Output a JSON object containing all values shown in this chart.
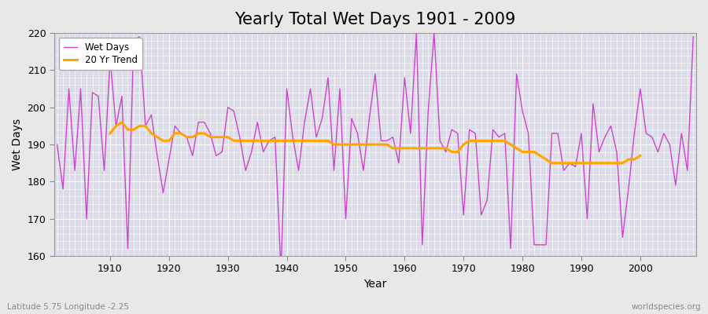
{
  "title": "Yearly Total Wet Days 1901 - 2009",
  "xlabel": "Year",
  "ylabel": "Wet Days",
  "subtitle": "Latitude 5.75 Longitude -2.25",
  "watermark": "worldspecies.org",
  "years": [
    1901,
    1902,
    1903,
    1904,
    1905,
    1906,
    1907,
    1908,
    1909,
    1910,
    1911,
    1912,
    1913,
    1914,
    1915,
    1916,
    1917,
    1918,
    1919,
    1920,
    1921,
    1922,
    1923,
    1924,
    1925,
    1926,
    1927,
    1928,
    1929,
    1930,
    1931,
    1932,
    1933,
    1934,
    1935,
    1936,
    1937,
    1938,
    1939,
    1940,
    1941,
    1942,
    1943,
    1944,
    1945,
    1946,
    1947,
    1948,
    1949,
    1950,
    1951,
    1952,
    1953,
    1954,
    1955,
    1956,
    1957,
    1958,
    1959,
    1960,
    1961,
    1962,
    1963,
    1964,
    1965,
    1966,
    1967,
    1968,
    1969,
    1970,
    1971,
    1972,
    1973,
    1974,
    1975,
    1976,
    1977,
    1978,
    1979,
    1980,
    1981,
    1982,
    1983,
    1984,
    1985,
    1986,
    1987,
    1988,
    1989,
    1990,
    1991,
    1992,
    1993,
    1994,
    1995,
    1996,
    1997,
    1998,
    1999,
    2000,
    2001,
    2002,
    2003,
    2004,
    2005,
    2006,
    2007,
    2008,
    2009
  ],
  "wet_days": [
    190,
    178,
    205,
    183,
    205,
    170,
    204,
    203,
    183,
    213,
    195,
    203,
    162,
    218,
    219,
    195,
    198,
    187,
    177,
    186,
    195,
    193,
    192,
    187,
    196,
    196,
    193,
    187,
    188,
    200,
    199,
    192,
    183,
    188,
    196,
    188,
    191,
    192,
    156,
    205,
    192,
    183,
    196,
    205,
    192,
    197,
    208,
    183,
    205,
    170,
    197,
    193,
    183,
    197,
    209,
    191,
    191,
    192,
    185,
    208,
    193,
    220,
    163,
    199,
    220,
    191,
    188,
    194,
    193,
    171,
    194,
    193,
    171,
    175,
    194,
    192,
    193,
    162,
    209,
    199,
    193,
    163,
    163,
    163,
    193,
    193,
    183,
    185,
    184,
    193,
    170,
    201,
    188,
    192,
    195,
    188,
    165,
    178,
    193,
    205,
    193,
    192,
    188,
    193,
    190,
    179,
    193,
    183,
    219
  ],
  "trend_years": [
    1910,
    1911,
    1912,
    1913,
    1914,
    1915,
    1916,
    1917,
    1918,
    1919,
    1920,
    1921,
    1922,
    1923,
    1924,
    1925,
    1926,
    1927,
    1928,
    1929,
    1930,
    1931,
    1932,
    1933,
    1934,
    1935,
    1936,
    1937,
    1938,
    1939,
    1940,
    1941,
    1942,
    1943,
    1944,
    1945,
    1946,
    1947,
    1948,
    1949,
    1950,
    1951,
    1952,
    1953,
    1954,
    1955,
    1956,
    1957,
    1958,
    1959,
    1960,
    1961,
    1962,
    1963,
    1964,
    1965,
    1966,
    1967,
    1968,
    1969,
    1970,
    1971,
    1972,
    1973,
    1974,
    1975,
    1976,
    1977,
    1978,
    1979,
    1980,
    1981,
    1982,
    1983,
    1984,
    1985,
    1986,
    1987,
    1988,
    1989,
    1990,
    1991,
    1992,
    1993,
    1994,
    1995,
    1996,
    1997,
    1998,
    1999,
    2000
  ],
  "trend_values": [
    193,
    195,
    196,
    194,
    194,
    195,
    195,
    193,
    192,
    191,
    191,
    193,
    193,
    192,
    192,
    193,
    193,
    192,
    192,
    192,
    192,
    191,
    191,
    191,
    191,
    191,
    191,
    191,
    191,
    191,
    191,
    191,
    191,
    191,
    191,
    191,
    191,
    191,
    190,
    190,
    190,
    190,
    190,
    190,
    190,
    190,
    190,
    190,
    189,
    189,
    189,
    189,
    189,
    189,
    189,
    189,
    189,
    189,
    188,
    188,
    190,
    191,
    191,
    191,
    191,
    191,
    191,
    191,
    190,
    189,
    188,
    188,
    188,
    187,
    186,
    185,
    185,
    185,
    185,
    185,
    185,
    185,
    185,
    185,
    185,
    185,
    185,
    185,
    186,
    186,
    187
  ],
  "line_color": "#CC44CC",
  "trend_color": "#FFA500",
  "bg_color": "#E8E8E8",
  "plot_bg_color": "#DCDCE8",
  "grid_color": "#FFFFFF",
  "ylim": [
    160,
    220
  ],
  "yticks": [
    160,
    170,
    180,
    190,
    200,
    210,
    220
  ],
  "title_fontsize": 15,
  "label_fontsize": 10,
  "tick_fontsize": 9,
  "figsize": [
    9.0,
    4.0
  ],
  "dpi": 100
}
